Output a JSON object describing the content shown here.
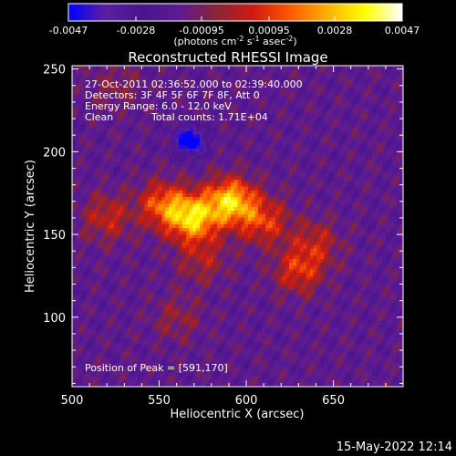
{
  "colorbar": {
    "tick_labels": [
      "-0.0047",
      "-0.0028",
      "-0.00095",
      "0.00095",
      "0.0028",
      "0.0047"
    ],
    "tick_values": [
      -0.0047,
      -0.0028,
      -0.00095,
      0.00095,
      0.0028,
      0.0047
    ],
    "range": [
      -0.0047,
      0.0047
    ],
    "units_prefix": "(photons cm",
    "units_exp1": "-2",
    "units_mid": " s",
    "units_exp2": "-1",
    "units_mid2": " asec",
    "units_exp3": "-2",
    "units_suffix": ")",
    "colormap": "blue-purple-red-yellow-white",
    "colors": [
      "#0000ff",
      "#5a1fa0",
      "#4a148c",
      "#5d1b94",
      "#8a2436",
      "#d21a10",
      "#ff5c00",
      "#ffb300",
      "#ffff00",
      "#ffffff"
    ]
  },
  "chart_data": {
    "type": "heatmap",
    "title": "Reconstructed RHESSI Image",
    "xlabel": "Heliocentric X (arcsec)",
    "ylabel": "Heliocentric Y (arcsec)",
    "xlim": [
      500,
      690
    ],
    "ylim": [
      58,
      252
    ],
    "x_ticks": [
      500,
      550,
      600,
      650
    ],
    "y_ticks": [
      100,
      150,
      200,
      250
    ],
    "x_tick_labels": [
      "500",
      "550",
      "600",
      "650"
    ],
    "y_tick_labels": [
      "100",
      "150",
      "200",
      "250"
    ],
    "sources": [
      {
        "x": 591,
        "y": 170,
        "peak": 0.0047
      },
      {
        "x": 569,
        "y": 160,
        "peak": 0.0046
      },
      {
        "x": 552,
        "y": 168,
        "peak": 0.003
      },
      {
        "x": 610,
        "y": 158,
        "peak": 0.0026
      },
      {
        "x": 630,
        "y": 128,
        "peak": 0.0024
      },
      {
        "x": 640,
        "y": 145,
        "peak": 0.0018
      },
      {
        "x": 520,
        "y": 160,
        "peak": 0.002
      },
      {
        "x": 575,
        "y": 135,
        "peak": 0.0016
      },
      {
        "x": 560,
        "y": 100,
        "peak": 0.0012
      },
      {
        "x": 525,
        "y": 240,
        "peak": 0.001
      },
      {
        "x": 568,
        "y": 207,
        "peak": -0.004
      }
    ],
    "annotations": {
      "time": "27-Oct-2011 02:36:52.000 to 02:39:40.000",
      "detectors": "Detectors: 3F 4F 5F 6F 7F 8F, Att 0",
      "energy": "Energy Range: 6.0 - 12.0 keV",
      "method": "Clean",
      "counts": "Total counts: 1.71E+04",
      "peak": "Position of Peak = [591,170]"
    }
  },
  "footer": {
    "date": "15-May-2022 12:14"
  }
}
